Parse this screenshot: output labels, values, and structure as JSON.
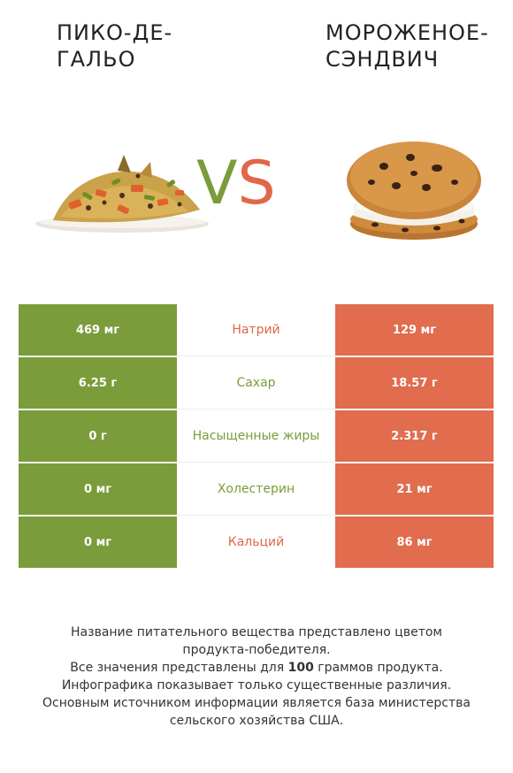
{
  "food_left": {
    "name": "ПИКО-ДЕ-ГАЛЬО",
    "line1": "ПИКО-ДЕ-",
    "line2": "ГАЛЬО"
  },
  "food_right": {
    "name": "МОРОЖЕНОЕ-СЭНДВИЧ",
    "line1": "МОРОЖЕНОЕ-",
    "line2": "СЭНДВИЧ"
  },
  "vs": {
    "v": "V",
    "s": "S"
  },
  "colors": {
    "left": "#7a9c3a",
    "right": "#e16c4e",
    "winner_left": "#7a9c3a",
    "winner_right": "#e0674a"
  },
  "rows": [
    {
      "nutrient": "Натрий",
      "left": "469 мг",
      "right": "129 мг",
      "winner": "right"
    },
    {
      "nutrient": "Сахар",
      "left": "6.25 г",
      "right": "18.57 г",
      "winner": "left"
    },
    {
      "nutrient": "Насыщенные жиры",
      "left": "0 г",
      "right": "2.317 г",
      "winner": "left"
    },
    {
      "nutrient": "Холестерин",
      "left": "0 мг",
      "right": "21 мг",
      "winner": "left"
    },
    {
      "nutrient": "Кальций",
      "left": "0 мг",
      "right": "86 мг",
      "winner": "right"
    }
  ],
  "footer": {
    "line1": "Название питательного вещества представлено цветом",
    "line2": "продукта-победителя.",
    "line3_pre": "Все значения представлены для ",
    "line3_bold": "100",
    "line3_post": " граммов продукта.",
    "line4": "Инфографика показывает только существенные различия.",
    "line5": "Основным источником информации является база министерства",
    "line6": "сельского хозяйства США."
  }
}
